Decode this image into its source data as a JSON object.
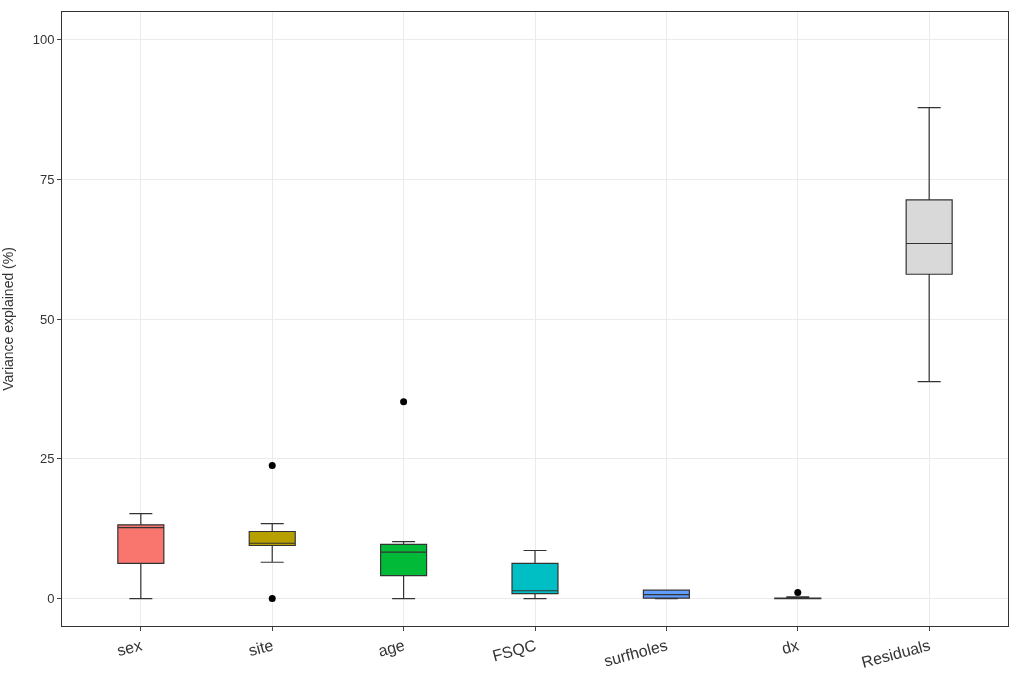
{
  "chart_data": {
    "type": "box",
    "ylabel": "Variance explained (%)",
    "categories": [
      "sex",
      "site",
      "age",
      "FSQC",
      "surfholes",
      "dx",
      "Residuals"
    ],
    "colors": [
      "#f8766d",
      "#b79f00",
      "#00ba38",
      "#00bfc4",
      "#619cff",
      "#f564e3",
      "#d9d9d9"
    ],
    "boxes": [
      {
        "low": 0,
        "q1": 6.3,
        "median": 12.7,
        "q3": 13.2,
        "high": 15.2
      },
      {
        "low": 6.5,
        "q1": 9.5,
        "median": 9.9,
        "q3": 12.0,
        "high": 13.4,
        "outliers": [
          23.8,
          0
        ]
      },
      {
        "low": 0,
        "q1": 4.1,
        "median": 8.3,
        "q3": 9.7,
        "high": 10.2,
        "outliers": [
          35.2
        ]
      },
      {
        "low": 0,
        "q1": 0.9,
        "median": 1.4,
        "q3": 6.3,
        "high": 8.6
      },
      {
        "low": 0,
        "q1": 0.1,
        "median": 0.7,
        "q3": 1.5,
        "high": 1.5
      },
      {
        "low": 0,
        "q1": 0,
        "median": 0.05,
        "q3": 0.1,
        "high": 0.3,
        "outliers": [
          1.1
        ]
      },
      {
        "low": 38.8,
        "q1": 58.0,
        "median": 63.5,
        "q3": 71.3,
        "high": 87.8
      }
    ],
    "ylim": [
      -4.9,
      104.9
    ],
    "yticks": [
      0,
      25,
      50,
      75,
      100
    ],
    "grid": true
  }
}
